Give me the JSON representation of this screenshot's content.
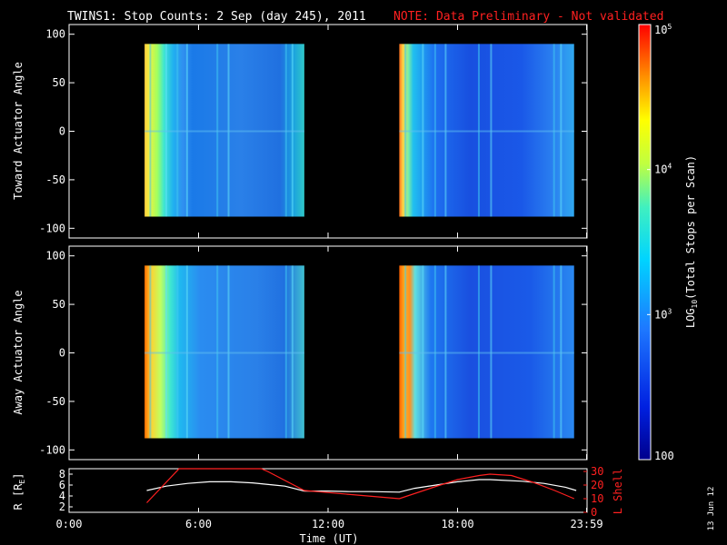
{
  "title": {
    "main": "TWINS1: Stop Counts:  2 Sep (day 245), 2011",
    "note": "NOTE: Data Preliminary - Not validated"
  },
  "timestamp": "13 Jun 12",
  "colors": {
    "note": "#ff2020",
    "axes": "#ffffff",
    "background": "#000000",
    "lshell": "#ff2020",
    "radius": "#ffffff"
  },
  "chart_data": [
    {
      "type": "heatmap",
      "ylabel": "Toward Actuator Angle",
      "ylim": [
        -110,
        110
      ],
      "yticks": [
        -100,
        -50,
        0,
        50,
        100
      ],
      "xlim": [
        0,
        24
      ],
      "data_rows": [
        -88,
        90
      ],
      "data_blocks": [
        [
          3.5,
          10.9
        ],
        [
          15.3,
          23.4
        ]
      ]
    },
    {
      "type": "heatmap",
      "ylabel": "Away Actuator Angle",
      "ylim": [
        -110,
        110
      ],
      "yticks": [
        -100,
        -50,
        0,
        50,
        100
      ],
      "xlim": [
        0,
        24
      ],
      "data_rows": [
        -88,
        90
      ],
      "data_blocks": [
        [
          3.5,
          10.9
        ],
        [
          15.3,
          23.4
        ]
      ]
    },
    {
      "type": "line",
      "xlabel": "Time (UT)",
      "xticks": [
        "0:00",
        "6:00",
        "12:00",
        "18:00",
        "23:59"
      ],
      "xtick_values": [
        0,
        6,
        12,
        18,
        23.98
      ],
      "xlim": [
        0,
        24
      ],
      "ylabel_left": "R [R",
      "ylabel_left_sub": "E",
      "ylabel_left_end": "]",
      "ylim_left": [
        1,
        9
      ],
      "yticks_left": [
        2,
        4,
        6,
        8
      ],
      "ylabel_right": "L Shell",
      "ylim_right": [
        0,
        32
      ],
      "yticks_right": [
        0,
        10,
        20,
        30
      ],
      "series": [
        {
          "axis": "left",
          "x": [
            3.6,
            4.5,
            5.5,
            6.5,
            7.5,
            8.5,
            9.5,
            10,
            10.9,
            12,
            13,
            14,
            15.3,
            16,
            17,
            18,
            19,
            19.5,
            20,
            21,
            22,
            23,
            23.5
          ],
          "y": [
            5.0,
            5.8,
            6.3,
            6.6,
            6.6,
            6.4,
            6.0,
            5.8,
            4.9,
            4.9,
            4.8,
            4.8,
            4.7,
            5.4,
            6.0,
            6.6,
            7.0,
            7.0,
            6.9,
            6.7,
            6.3,
            5.6,
            5.0
          ]
        },
        {
          "axis": "right",
          "x": [
            3.6,
            5.1,
            5.3,
            8.9,
            9.2,
            10.9,
            15.3,
            17,
            18,
            19,
            19.5,
            20.5,
            21.5,
            22.5,
            23.4
          ],
          "y": [
            7,
            32,
            32,
            32,
            30,
            16,
            10,
            19,
            24,
            27,
            28,
            27,
            22,
            16,
            10
          ]
        }
      ]
    },
    {
      "type": "colorbar",
      "ylabel": "LOG",
      "ylabel_sub": "10",
      "ylabel_end": "(Total Stops per Scan)",
      "scale": "log",
      "range": [
        100,
        100000
      ],
      "ticks": [
        {
          "value": 100,
          "base": "100",
          "exp": ""
        },
        {
          "value": 1000,
          "base": "10",
          "exp": "3"
        },
        {
          "value": 10000,
          "base": "10",
          "exp": "4"
        },
        {
          "value": 100000,
          "base": "10",
          "exp": "5"
        }
      ]
    }
  ]
}
